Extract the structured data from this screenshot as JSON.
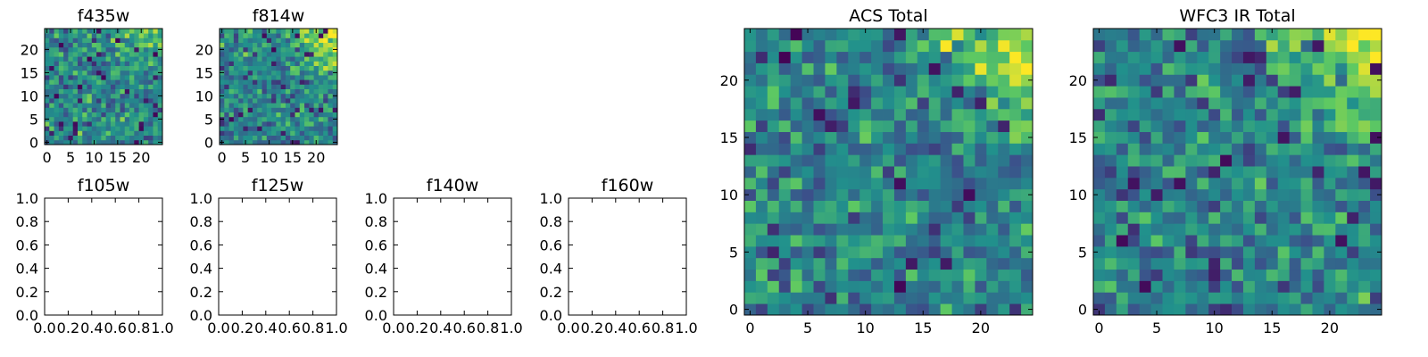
{
  "chart_data": [
    {
      "type": "heatmap",
      "title": "f435w",
      "xlabel": "",
      "ylabel": "",
      "xlim": [
        -0.5,
        24.5
      ],
      "ylim": [
        -0.5,
        24.5
      ],
      "xticks": [
        0,
        5,
        10,
        15,
        20
      ],
      "yticks": [
        0,
        5,
        10,
        15,
        20
      ],
      "tick_labels_x": [
        "0",
        "5",
        "10",
        "15",
        "20"
      ],
      "tick_labels_y": [
        "0",
        "5",
        "10",
        "15",
        "20"
      ],
      "grid": false,
      "colormap": "viridis",
      "grid_size": 25,
      "data_description": "random noise field with bright corner at upper right",
      "seed": 11,
      "bright_corner": 0.35
    },
    {
      "type": "heatmap",
      "title": "f814w",
      "xlabel": "",
      "ylabel": "",
      "xlim": [
        -0.5,
        24.5
      ],
      "ylim": [
        -0.5,
        24.5
      ],
      "xticks": [
        0,
        5,
        10,
        15,
        20
      ],
      "yticks": [
        0,
        5,
        10,
        15,
        20
      ],
      "tick_labels_x": [
        "0",
        "5",
        "10",
        "15",
        "20"
      ],
      "tick_labels_y": [
        "0",
        "5",
        "10",
        "15",
        "20"
      ],
      "grid": false,
      "colormap": "viridis",
      "grid_size": 25,
      "seed": 23,
      "bright_corner": 0.7
    },
    {
      "type": "empty",
      "title": "f105w",
      "xlim": [
        0,
        1
      ],
      "ylim": [
        0,
        1
      ],
      "tick_labels_x": [
        "0.0",
        "0.2",
        "0.4",
        "0.6",
        "0.8",
        "1.0"
      ],
      "tick_labels_y": [
        "0.0",
        "0.2",
        "0.4",
        "0.6",
        "0.8",
        "1.0"
      ],
      "grid": false
    },
    {
      "type": "empty",
      "title": "f125w",
      "xlim": [
        0,
        1
      ],
      "ylim": [
        0,
        1
      ],
      "tick_labels_x": [
        "0.0",
        "0.2",
        "0.4",
        "0.6",
        "0.8",
        "1.0"
      ],
      "tick_labels_y": [
        "0.0",
        "0.2",
        "0.4",
        "0.6",
        "0.8",
        "1.0"
      ],
      "grid": false
    },
    {
      "type": "empty",
      "title": "f140w",
      "xlim": [
        0,
        1
      ],
      "ylim": [
        0,
        1
      ],
      "tick_labels_x": [
        "0.0",
        "0.2",
        "0.4",
        "0.6",
        "0.8",
        "1.0"
      ],
      "tick_labels_y": [
        "0.0",
        "0.2",
        "0.4",
        "0.6",
        "0.8",
        "1.0"
      ],
      "grid": false
    },
    {
      "type": "empty",
      "title": "f160w",
      "xlim": [
        0,
        1
      ],
      "ylim": [
        0,
        1
      ],
      "tick_labels_x": [
        "0.0",
        "0.2",
        "0.4",
        "0.6",
        "0.8",
        "1.0"
      ],
      "tick_labels_y": [
        "0.0",
        "0.2",
        "0.4",
        "0.6",
        "0.8",
        "1.0"
      ],
      "grid": false
    },
    {
      "type": "heatmap",
      "title": "ACS Total",
      "xlabel": "",
      "ylabel": "",
      "xlim": [
        -0.5,
        24.5
      ],
      "ylim": [
        -0.5,
        24.5
      ],
      "xticks": [
        0,
        5,
        10,
        15,
        20
      ],
      "yticks": [
        0,
        5,
        10,
        15,
        20
      ],
      "tick_labels_x": [
        "0",
        "5",
        "10",
        "15",
        "20"
      ],
      "tick_labels_y": [
        "0",
        "5",
        "10",
        "15",
        "20"
      ],
      "grid": false,
      "colormap": "viridis",
      "grid_size": 25,
      "seed": 37,
      "bright_corner": 0.55
    },
    {
      "type": "heatmap",
      "title": "WFC3 IR Total",
      "xlabel": "",
      "ylabel": "",
      "xlim": [
        -0.5,
        24.5
      ],
      "ylim": [
        -0.5,
        24.5
      ],
      "xticks": [
        0,
        5,
        10,
        15,
        20
      ],
      "yticks": [
        0,
        5,
        10,
        15,
        20
      ],
      "tick_labels_x": [
        "0",
        "5",
        "10",
        "15",
        "20"
      ],
      "tick_labels_y": [
        "0",
        "5",
        "10",
        "15",
        "20"
      ],
      "grid": false,
      "colormap": "viridis",
      "grid_size": 25,
      "seed": 53,
      "bright_corner": 0.6
    }
  ],
  "colormap_stops": [
    "#440154",
    "#3b528b",
    "#21918c",
    "#5ec962",
    "#fde725"
  ]
}
